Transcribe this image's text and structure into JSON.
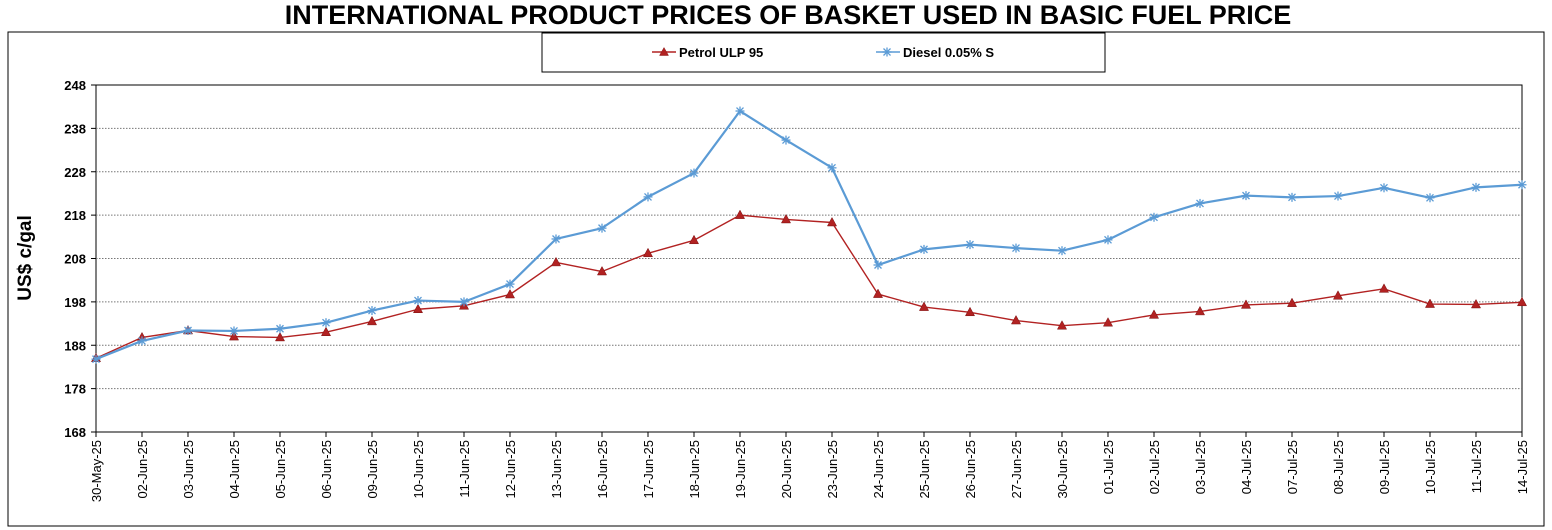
{
  "chart_data": {
    "type": "line",
    "title": "INTERNATIONAL PRODUCT PRICES OF BASKET USED IN BASIC FUEL PRICE",
    "xlabel": "",
    "ylabel": "US$ c/gal",
    "ylim": [
      168,
      248
    ],
    "yticks": [
      "168",
      "178",
      "188",
      "198",
      "208",
      "218",
      "228",
      "238",
      "248"
    ],
    "grid": "horizontal-dotted",
    "legend_position": "top-center",
    "categories": [
      "30-May-25",
      "02-Jun-25",
      "03-Jun-25",
      "04-Jun-25",
      "05-Jun-25",
      "06-Jun-25",
      "09-Jun-25",
      "10-Jun-25",
      "11-Jun-25",
      "12-Jun-25",
      "13-Jun-25",
      "16-Jun-25",
      "17-Jun-25",
      "18-Jun-25",
      "19-Jun-25",
      "20-Jun-25",
      "23-Jun-25",
      "24-Jun-25",
      "25-Jun-25",
      "26-Jun-25",
      "27-Jun-25",
      "30-Jun-25",
      "01-Jul-25",
      "02-Jul-25",
      "03-Jul-25",
      "04-Jul-25",
      "07-Jul-25",
      "08-Jul-25",
      "09-Jul-25",
      "10-Jul-25",
      "11-Jul-25",
      "14-Jul-25"
    ],
    "series": [
      {
        "name": "Petrol ULP 95",
        "color": "#b22222",
        "marker": "triangle",
        "values": [
          185.0,
          189.8,
          191.4,
          190.0,
          189.8,
          191.0,
          193.5,
          196.3,
          197.1,
          199.7,
          207.1,
          205.0,
          209.2,
          212.2,
          218.0,
          217.0,
          216.3,
          199.8,
          196.8,
          195.6,
          193.7,
          192.5,
          193.2,
          195.0,
          195.8,
          197.3,
          197.7,
          199.4,
          201.0,
          197.5,
          197.4,
          197.9
        ]
      },
      {
        "name": "Diesel 0.05% S",
        "color": "#5b9bd5",
        "marker": "star",
        "values": [
          184.8,
          189.0,
          191.4,
          191.3,
          191.8,
          193.2,
          196.0,
          198.3,
          198.0,
          202.1,
          212.5,
          215.0,
          222.2,
          227.7,
          242.0,
          235.3,
          228.9,
          206.5,
          210.1,
          211.2,
          210.4,
          209.8,
          212.3,
          217.5,
          220.7,
          222.5,
          222.1,
          222.4,
          224.3,
          222.0,
          224.4,
          225.0
        ]
      }
    ]
  }
}
